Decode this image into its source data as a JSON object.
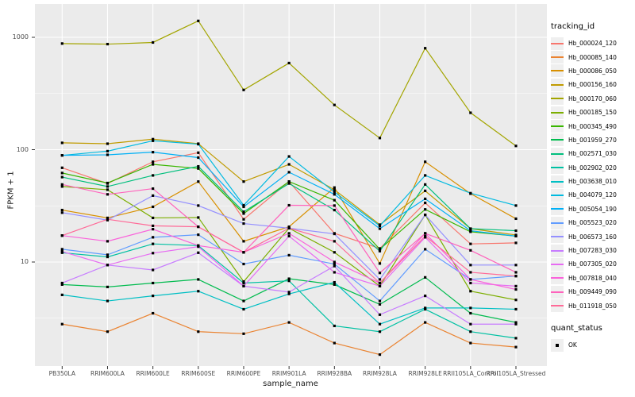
{
  "figure": {
    "x_axis": {
      "title": "sample_name"
    },
    "y_axis": {
      "title": "FPKM + 1",
      "ticks": [
        "10",
        "100",
        "1000"
      ]
    },
    "legend": {
      "tracking_title": "tracking_id",
      "quant_title": "quant_status",
      "quant_items": [
        {
          "label": "OK"
        }
      ]
    }
  },
  "colors": {
    "panel_bg": "#EBEBEB",
    "grid": "#FFFFFF",
    "axis_text": "#4D4D4D",
    "tick_mark": "#333333",
    "point": "#000000",
    "legend_key_bg": "#EFEFEF"
  },
  "chart_data": {
    "type": "line",
    "title": "",
    "xlabel": "sample_name",
    "ylabel": "FPKM + 1",
    "y_scale": "log10",
    "ylim": [
      1.2,
      1900
    ],
    "y_major_ticks": [
      10,
      100,
      1000
    ],
    "y_minor_gridlines": [
      3.162,
      31.62,
      316.2
    ],
    "grid": "on",
    "legend_position": "right",
    "point_marker": {
      "shape": "square",
      "color": "#000000",
      "status_label": "OK"
    },
    "categories": [
      "PB350LA",
      "RRIM600LA",
      "RRIM600LE",
      "RRIM600SE",
      "RRIM600PE",
      "RRIM901LA",
      "RRIM928BA",
      "RRIM928LA",
      "RRIM928LE",
      "RRII105LA_Control",
      "RRII105LA_Stressed"
    ],
    "series": [
      {
        "name": "Hb_000024_120",
        "color": "#F8766D",
        "values": [
          69,
          50,
          78,
          94,
          24,
          52,
          18,
          13.2,
          33.6,
          14.5,
          14.8
        ]
      },
      {
        "name": "Hb_000085_140",
        "color": "#EA8331",
        "values": [
          2.8,
          2.4,
          3.5,
          2.4,
          2.3,
          2.9,
          1.9,
          1.5,
          2.9,
          1.9,
          1.75
        ]
      },
      {
        "name": "Hb_000086_050",
        "color": "#D89000",
        "values": [
          29,
          24.7,
          31,
          52,
          15.3,
          20.6,
          46,
          9.7,
          78,
          40.6,
          24.3
        ]
      },
      {
        "name": "Hb_000156_160",
        "color": "#C09B00",
        "values": [
          115,
          113,
          124,
          113,
          52,
          74,
          44,
          21.5,
          43,
          19.8,
          17.4
        ]
      },
      {
        "name": "Hb_000170_060",
        "color": "#A3A500",
        "values": [
          880,
          870,
          900,
          1400,
          340,
          590,
          250,
          127,
          800,
          213,
          108
        ]
      },
      {
        "name": "Hb_000185_150",
        "color": "#7CAE00",
        "values": [
          47,
          44,
          24.7,
          24.9,
          6.7,
          20,
          12.2,
          6.1,
          26.3,
          5.5,
          4.6
        ]
      },
      {
        "name": "Hb_000345_490",
        "color": "#39B600",
        "values": [
          62,
          50.5,
          74,
          68,
          27,
          52,
          35.5,
          13,
          29.4,
          18.6,
          17
        ]
      },
      {
        "name": "Hb_001959_270",
        "color": "#00BB4E",
        "values": [
          6.3,
          6,
          6.5,
          7,
          4.5,
          7.1,
          6.3,
          4.2,
          7.3,
          3.5,
          2.9
        ]
      },
      {
        "name": "Hb_002571_030",
        "color": "#00BF7D",
        "values": [
          57,
          47,
          59,
          71,
          28,
          50,
          29,
          12.5,
          49,
          19.8,
          19
        ]
      },
      {
        "name": "Hb_002902_020",
        "color": "#00C1A3",
        "values": [
          12.1,
          11.1,
          14.5,
          14,
          6.5,
          6.8,
          2.7,
          2.4,
          3.8,
          2.4,
          2.1
        ]
      },
      {
        "name": "Hb_003638_010",
        "color": "#00BFC4",
        "values": [
          5.1,
          4.5,
          5,
          5.5,
          3.8,
          5.2,
          6.6,
          2.8,
          3.9,
          3.9,
          3.8
        ]
      },
      {
        "name": "Hb_004079_120",
        "color": "#00BAE0",
        "values": [
          89,
          97,
          120,
          112,
          32,
          87,
          42,
          21,
          59,
          41,
          31.8
        ]
      },
      {
        "name": "Hb_005054_190",
        "color": "#00B0F6",
        "values": [
          89,
          90,
          95,
          85,
          31,
          63,
          40,
          19.8,
          36.5,
          19,
          17
        ]
      },
      {
        "name": "Hb_005523_020",
        "color": "#619CFF",
        "values": [
          13,
          11.6,
          16.6,
          17.5,
          9.6,
          11.5,
          9.6,
          4.5,
          13,
          7,
          7.5
        ]
      },
      {
        "name": "Hb_006573_160",
        "color": "#9590FF",
        "values": [
          27.5,
          23.6,
          39,
          31.8,
          22,
          20,
          17.8,
          7,
          26.3,
          9.4,
          9.4
        ]
      },
      {
        "name": "Hb_007283_030",
        "color": "#C77CFF",
        "values": [
          6.5,
          9.4,
          8.5,
          12.1,
          6.1,
          5.4,
          9.2,
          3.4,
          5,
          2.8,
          2.8
        ]
      },
      {
        "name": "Hb_007305_020",
        "color": "#E76BF3",
        "values": [
          12.4,
          9.4,
          12,
          13.7,
          6.1,
          17,
          8.1,
          6.1,
          16.6,
          6.5,
          6.1
        ]
      },
      {
        "name": "Hb_007818_040",
        "color": "#FA62DB",
        "values": [
          17.2,
          15.3,
          19.6,
          14,
          12.2,
          18,
          10,
          6.5,
          18,
          7,
          5.7
        ]
      },
      {
        "name": "Hb_009449_090",
        "color": "#FF62BC",
        "values": [
          49,
          40,
          45,
          20.6,
          12.2,
          32,
          31.8,
          8,
          18,
          12.7,
          8.1
        ]
      },
      {
        "name": "Hb_011918_050",
        "color": "#FF6A98",
        "values": [
          17.2,
          24,
          21,
          20.6,
          12.2,
          20,
          15.3,
          6.5,
          17,
          8.1,
          7.5
        ]
      }
    ]
  }
}
